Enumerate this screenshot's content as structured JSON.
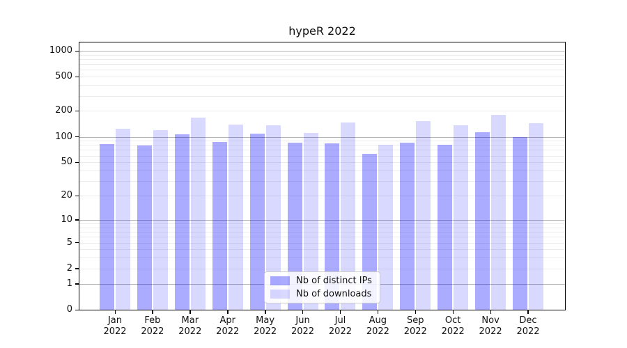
{
  "chart_data": {
    "type": "bar",
    "title": "hypeR 2022",
    "scale": "log1p",
    "grid": true,
    "legend_position": "bottom-center-inside",
    "categories": [
      "Jan",
      "Feb",
      "Mar",
      "Apr",
      "May",
      "Jun",
      "Jul",
      "Aug",
      "Sep",
      "Oct",
      "Nov",
      "Dec"
    ],
    "category_year": "2022",
    "series": [
      {
        "name": "Nb of distinct IPs",
        "fill": "rgba(0,0,255,0.33)",
        "solid_hex": "#a9a9f2",
        "values": [
          82,
          79,
          106,
          87,
          108,
          85,
          83,
          63,
          85,
          80,
          112,
          100
        ]
      },
      {
        "name": "Nb of downloads",
        "fill": "rgba(0,0,255,0.15)",
        "solid_hex": "#d9d9f9",
        "values": [
          125,
          119,
          167,
          138,
          135,
          111,
          148,
          80,
          151,
          136,
          180,
          144
        ]
      }
    ],
    "ylim": [
      0,
      1300
    ],
    "y_ticks": [
      0,
      1,
      2,
      5,
      10,
      20,
      50,
      100,
      200,
      500,
      1000
    ],
    "y_grid_strong": [
      1,
      10,
      100,
      1000
    ],
    "y_grid_weak": [
      2,
      3,
      4,
      5,
      6,
      7,
      8,
      9,
      20,
      30,
      40,
      50,
      60,
      70,
      80,
      90,
      200,
      300,
      400,
      500,
      600,
      700,
      800,
      900
    ],
    "colors": {
      "grid_strong": "#b3b3b3",
      "grid_weak": "#ebebeb",
      "spine": "#000000",
      "legend_border": "#cccccc"
    },
    "xlabel": "",
    "ylabel": ""
  }
}
